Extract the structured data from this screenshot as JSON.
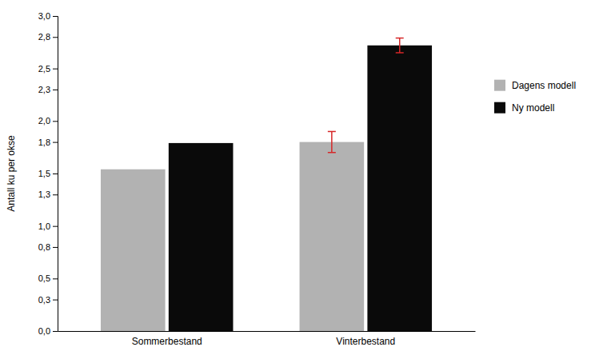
{
  "chart_data": {
    "type": "bar",
    "categories": [
      "Sommerbestand",
      "Vinterbestand"
    ],
    "series": [
      {
        "name": "Dagens modell",
        "color": "#b2b2b2",
        "values": [
          1.54,
          1.8
        ],
        "error_low": [
          0.0,
          0.1
        ],
        "error_high": [
          0.0,
          0.1
        ]
      },
      {
        "name": "Ny modell",
        "color": "#0a0a0a",
        "values": [
          1.79,
          2.72
        ],
        "error_low": [
          0.0,
          0.07
        ],
        "error_high": [
          0.0,
          0.07
        ]
      }
    ],
    "y_label": "Antall ku per okse",
    "ylim": [
      0,
      3.0
    ],
    "yticks": [
      {
        "value": 0.0,
        "label": "0,0"
      },
      {
        "value": 0.3,
        "label": "0,3"
      },
      {
        "value": 0.5,
        "label": "0,5"
      },
      {
        "value": 0.8,
        "label": "0,8"
      },
      {
        "value": 1.0,
        "label": "1,0"
      },
      {
        "value": 1.3,
        "label": "1,3"
      },
      {
        "value": 1.5,
        "label": "1,5"
      },
      {
        "value": 1.8,
        "label": "1,8"
      },
      {
        "value": 2.0,
        "label": "2,0"
      },
      {
        "value": 2.3,
        "label": "2,3"
      },
      {
        "value": 2.5,
        "label": "2,5"
      },
      {
        "value": 2.8,
        "label": "2,8"
      },
      {
        "value": 3.0,
        "label": "3,0"
      }
    ],
    "grid": false,
    "legend": "right"
  }
}
